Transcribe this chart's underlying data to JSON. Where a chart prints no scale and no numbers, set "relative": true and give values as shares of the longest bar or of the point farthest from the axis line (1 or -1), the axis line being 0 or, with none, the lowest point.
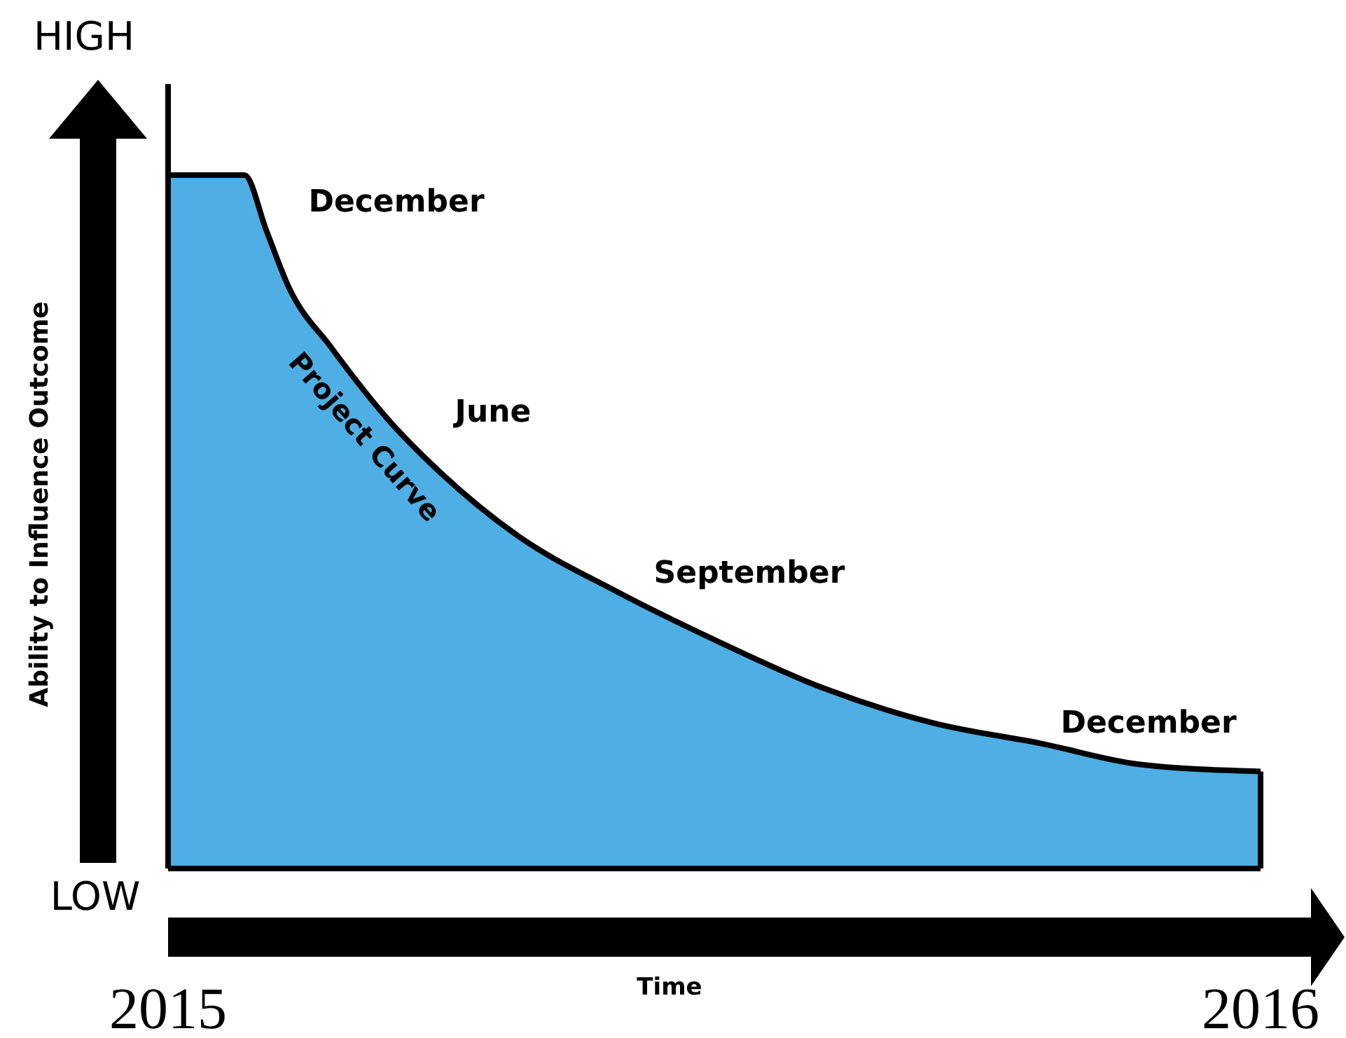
{
  "chart_data": {
    "type": "area",
    "relative": true,
    "xlabel": "Time",
    "ylabel": "Ability to Influence Outcome",
    "xlim": [
      2015,
      2016
    ],
    "xticks": [
      2015,
      2016
    ],
    "tick_labels": "x",
    "series": [
      {
        "name": "Project Curve",
        "color": "#4faee3",
        "x": [
          2015,
          2015.07,
          2015.09,
          2015.11,
          2015.15,
          2015.2,
          2015.25,
          2015.32,
          2015.41,
          2015.5,
          2015.6,
          2015.7,
          2015.8,
          2015.89,
          2016
        ],
        "values": [
          1,
          1,
          0.92,
          0.84,
          0.75,
          0.65,
          0.57,
          0.48,
          0.4,
          0.33,
          0.26,
          0.21,
          0.18,
          0.15,
          0.14
        ]
      }
    ],
    "annotations": [
      "HIGH",
      "LOW",
      "December",
      "June",
      "September",
      "December"
    ]
  }
}
